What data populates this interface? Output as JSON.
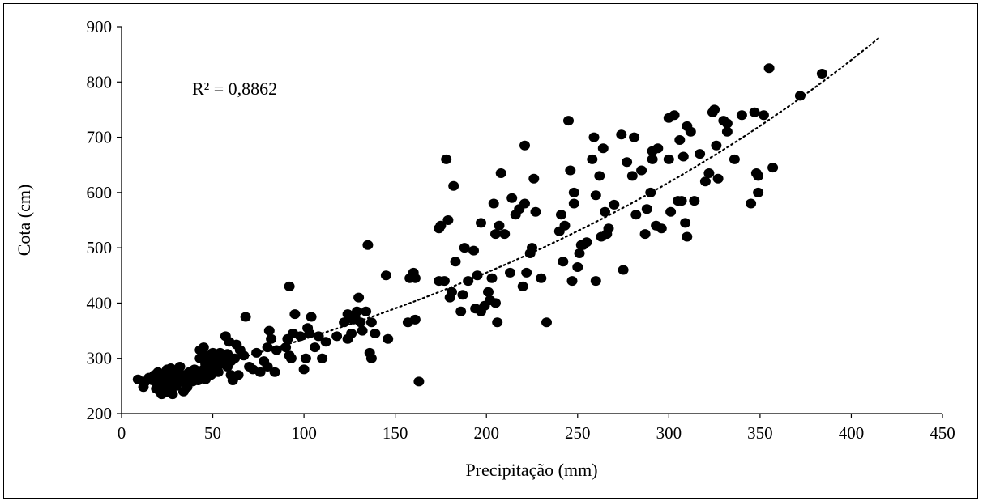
{
  "chart_data": {
    "type": "scatter",
    "xlabel": "Precipitação (mm)",
    "ylabel": "Cota (cm)",
    "xlim": [
      0,
      450
    ],
    "ylim": [
      200,
      900
    ],
    "xticks": [
      0,
      50,
      100,
      150,
      200,
      250,
      300,
      350,
      400,
      450
    ],
    "yticks": [
      200,
      300,
      400,
      500,
      600,
      700,
      800,
      900
    ],
    "grid": false,
    "legend": "none",
    "marker_color": "#000000",
    "annotation": "R² = 0,8862",
    "trendline": {
      "style": "dotted",
      "color": "#000000",
      "x_start": 20,
      "x_end": 416,
      "y_start": 262,
      "y_end": 882
    },
    "points": [
      [
        9,
        262
      ],
      [
        12,
        248
      ],
      [
        13,
        258
      ],
      [
        15,
        265
      ],
      [
        17,
        260
      ],
      [
        18,
        270
      ],
      [
        19,
        245
      ],
      [
        20,
        255
      ],
      [
        20,
        275
      ],
      [
        21,
        240
      ],
      [
        21,
        268
      ],
      [
        22,
        235
      ],
      [
        22,
        262
      ],
      [
        23,
        250
      ],
      [
        24,
        270
      ],
      [
        24,
        238
      ],
      [
        25,
        258
      ],
      [
        25,
        280
      ],
      [
        26,
        265
      ],
      [
        26,
        245
      ],
      [
        27,
        272
      ],
      [
        27,
        282
      ],
      [
        28,
        255
      ],
      [
        28,
        235
      ],
      [
        29,
        262
      ],
      [
        29,
        268
      ],
      [
        30,
        250
      ],
      [
        31,
        276
      ],
      [
        31,
        258
      ],
      [
        32,
        285
      ],
      [
        33,
        262
      ],
      [
        34,
        240
      ],
      [
        34,
        270
      ],
      [
        35,
        255
      ],
      [
        36,
        265
      ],
      [
        36,
        248
      ],
      [
        37,
        275
      ],
      [
        38,
        262
      ],
      [
        38,
        270
      ],
      [
        39,
        258
      ],
      [
        40,
        280
      ],
      [
        40,
        265
      ],
      [
        41,
        272
      ],
      [
        42,
        260
      ],
      [
        42,
        275
      ],
      [
        43,
        300
      ],
      [
        43,
        315
      ],
      [
        44,
        268
      ],
      [
        45,
        280
      ],
      [
        45,
        320
      ],
      [
        46,
        262
      ],
      [
        46,
        290
      ],
      [
        47,
        275
      ],
      [
        47,
        305
      ],
      [
        48,
        285
      ],
      [
        49,
        270
      ],
      [
        49,
        295
      ],
      [
        50,
        310
      ],
      [
        50,
        278
      ],
      [
        51,
        300
      ],
      [
        52,
        285
      ],
      [
        52,
        305
      ],
      [
        53,
        295
      ],
      [
        53,
        275
      ],
      [
        54,
        310
      ],
      [
        55,
        290
      ],
      [
        56,
        300
      ],
      [
        57,
        340
      ],
      [
        58,
        285
      ],
      [
        58,
        308
      ],
      [
        59,
        330
      ],
      [
        60,
        295
      ],
      [
        60,
        270
      ],
      [
        61,
        260
      ],
      [
        62,
        300
      ],
      [
        63,
        325
      ],
      [
        64,
        270
      ],
      [
        65,
        315
      ],
      [
        67,
        305
      ],
      [
        68,
        375
      ],
      [
        70,
        285
      ],
      [
        72,
        280
      ],
      [
        74,
        310
      ],
      [
        76,
        275
      ],
      [
        78,
        295
      ],
      [
        80,
        285
      ],
      [
        80,
        320
      ],
      [
        81,
        350
      ],
      [
        82,
        335
      ],
      [
        84,
        275
      ],
      [
        85,
        315
      ],
      [
        90,
        320
      ],
      [
        91,
        335
      ],
      [
        92,
        305
      ],
      [
        92,
        430
      ],
      [
        93,
        300
      ],
      [
        94,
        345
      ],
      [
        95,
        380
      ],
      [
        98,
        340
      ],
      [
        100,
        280
      ],
      [
        101,
        300
      ],
      [
        102,
        355
      ],
      [
        103,
        345
      ],
      [
        104,
        375
      ],
      [
        106,
        320
      ],
      [
        108,
        340
      ],
      [
        110,
        300
      ],
      [
        112,
        330
      ],
      [
        118,
        340
      ],
      [
        122,
        365
      ],
      [
        124,
        380
      ],
      [
        124,
        335
      ],
      [
        126,
        345
      ],
      [
        127,
        370
      ],
      [
        128,
        375
      ],
      [
        129,
        385
      ],
      [
        130,
        410
      ],
      [
        131,
        365
      ],
      [
        132,
        350
      ],
      [
        134,
        385
      ],
      [
        135,
        505
      ],
      [
        136,
        310
      ],
      [
        137,
        365
      ],
      [
        137,
        300
      ],
      [
        139,
        345
      ],
      [
        145,
        450
      ],
      [
        146,
        335
      ],
      [
        157,
        365
      ],
      [
        158,
        445
      ],
      [
        160,
        455
      ],
      [
        161,
        370
      ],
      [
        161,
        445
      ],
      [
        163,
        258
      ],
      [
        174,
        440
      ],
      [
        174,
        535
      ],
      [
        175,
        540
      ],
      [
        177,
        440
      ],
      [
        178,
        660
      ],
      [
        179,
        550
      ],
      [
        180,
        410
      ],
      [
        181,
        420
      ],
      [
        182,
        612
      ],
      [
        183,
        475
      ],
      [
        186,
        385
      ],
      [
        187,
        415
      ],
      [
        188,
        500
      ],
      [
        190,
        440
      ],
      [
        193,
        495
      ],
      [
        194,
        390
      ],
      [
        195,
        450
      ],
      [
        197,
        385
      ],
      [
        197,
        545
      ],
      [
        199,
        395
      ],
      [
        201,
        420
      ],
      [
        202,
        405
      ],
      [
        203,
        445
      ],
      [
        204,
        580
      ],
      [
        205,
        400
      ],
      [
        205,
        525
      ],
      [
        206,
        365
      ],
      [
        207,
        540
      ],
      [
        208,
        635
      ],
      [
        210,
        525
      ],
      [
        213,
        455
      ],
      [
        214,
        590
      ],
      [
        216,
        560
      ],
      [
        218,
        570
      ],
      [
        220,
        430
      ],
      [
        221,
        685
      ],
      [
        221,
        580
      ],
      [
        222,
        455
      ],
      [
        224,
        490
      ],
      [
        225,
        500
      ],
      [
        226,
        625
      ],
      [
        227,
        565
      ],
      [
        230,
        445
      ],
      [
        233,
        365
      ],
      [
        240,
        530
      ],
      [
        241,
        560
      ],
      [
        242,
        475
      ],
      [
        243,
        540
      ],
      [
        245,
        730
      ],
      [
        246,
        640
      ],
      [
        247,
        440
      ],
      [
        248,
        580
      ],
      [
        248,
        600
      ],
      [
        250,
        465
      ],
      [
        251,
        490
      ],
      [
        252,
        505
      ],
      [
        253,
        505
      ],
      [
        255,
        510
      ],
      [
        258,
        660
      ],
      [
        259,
        700
      ],
      [
        260,
        440
      ],
      [
        260,
        595
      ],
      [
        262,
        630
      ],
      [
        263,
        520
      ],
      [
        264,
        680
      ],
      [
        265,
        565
      ],
      [
        266,
        525
      ],
      [
        267,
        535
      ],
      [
        270,
        578
      ],
      [
        274,
        705
      ],
      [
        275,
        460
      ],
      [
        277,
        655
      ],
      [
        280,
        630
      ],
      [
        281,
        700
      ],
      [
        282,
        560
      ],
      [
        285,
        640
      ],
      [
        287,
        525
      ],
      [
        288,
        570
      ],
      [
        290,
        600
      ],
      [
        291,
        660
      ],
      [
        291,
        675
      ],
      [
        293,
        540
      ],
      [
        294,
        680
      ],
      [
        296,
        535
      ],
      [
        300,
        735
      ],
      [
        300,
        660
      ],
      [
        301,
        565
      ],
      [
        303,
        740
      ],
      [
        305,
        585
      ],
      [
        306,
        695
      ],
      [
        307,
        585
      ],
      [
        308,
        665
      ],
      [
        309,
        545
      ],
      [
        310,
        520
      ],
      [
        310,
        720
      ],
      [
        312,
        710
      ],
      [
        314,
        585
      ],
      [
        317,
        670
      ],
      [
        320,
        620
      ],
      [
        322,
        635
      ],
      [
        324,
        745
      ],
      [
        325,
        750
      ],
      [
        326,
        685
      ],
      [
        327,
        625
      ],
      [
        330,
        730
      ],
      [
        332,
        710
      ],
      [
        332,
        725
      ],
      [
        336,
        660
      ],
      [
        340,
        740
      ],
      [
        345,
        580
      ],
      [
        347,
        745
      ],
      [
        348,
        635
      ],
      [
        349,
        600
      ],
      [
        349,
        630
      ],
      [
        352,
        740
      ],
      [
        355,
        825
      ],
      [
        357,
        645
      ],
      [
        372,
        775
      ],
      [
        384,
        815
      ]
    ]
  }
}
